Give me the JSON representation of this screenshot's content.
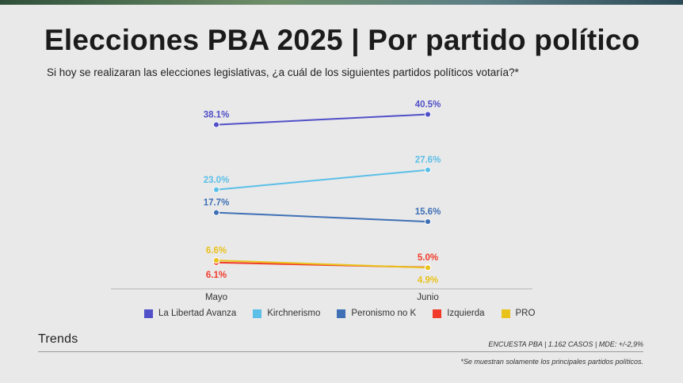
{
  "header": {
    "title": "Elecciones PBA 2025 | Por partido político",
    "subtitle": "Si hoy se realizaran las elecciones legislativas, ¿a cuál de los siguientes partidos políticos votaría?*"
  },
  "chart_data": {
    "type": "line",
    "categories": [
      "Mayo",
      "Junio"
    ],
    "ylim": [
      0,
      45
    ],
    "grid": false,
    "legend_position": "bottom",
    "series": [
      {
        "name": "La Libertad Avanza",
        "color": "#5150c8",
        "values": [
          38.1,
          40.5
        ],
        "labels": [
          "38.1%",
          "40.5%"
        ]
      },
      {
        "name": "Kirchnerismo",
        "color": "#5bbfe8",
        "values": [
          23.0,
          27.6
        ],
        "labels": [
          "23.0%",
          "27.6%"
        ]
      },
      {
        "name": "Peronismo no K",
        "color": "#3f70b5",
        "values": [
          17.7,
          15.6
        ],
        "labels": [
          "17.7%",
          "15.6%"
        ]
      },
      {
        "name": "Izquierda",
        "color": "#f23a2a",
        "values": [
          6.1,
          5.0
        ],
        "labels": [
          "6.1%",
          "5.0%"
        ]
      },
      {
        "name": "PRO",
        "color": "#e9c21b",
        "values": [
          6.6,
          4.9
        ],
        "labels": [
          "6.6%",
          "4.9%"
        ]
      }
    ]
  },
  "footer": {
    "brand": "Trends",
    "source": "ENCUESTA PBA | 1.162 CASOS | MDE: +/-2,9%",
    "note": "*Se muestran solamente los principales partidos políticos."
  }
}
